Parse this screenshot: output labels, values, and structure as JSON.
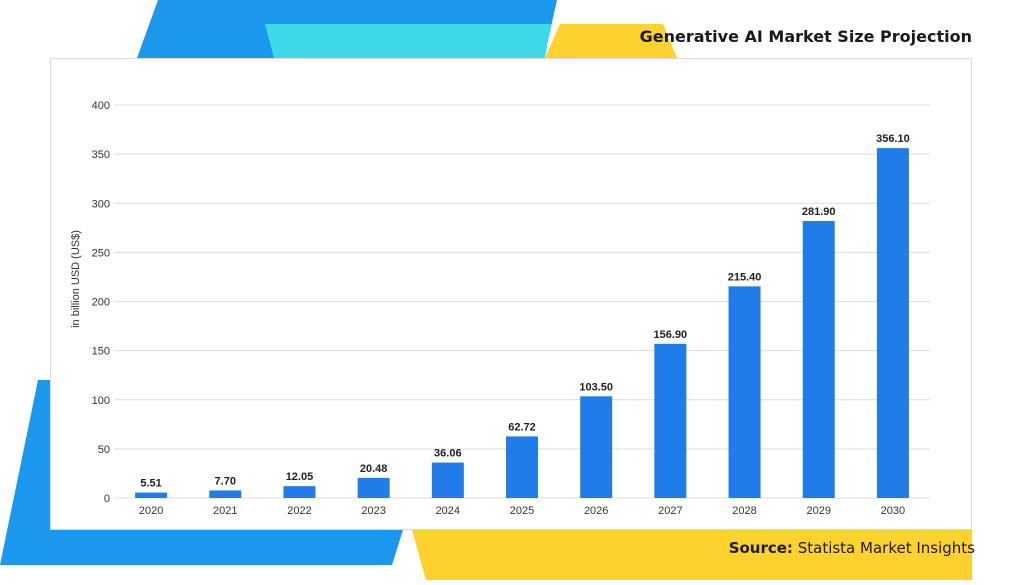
{
  "page": {
    "title": "Generative AI Market Size Projection",
    "source_label": "Source:",
    "source_text": "Statista Market Insights"
  },
  "colors": {
    "bar": "#1f7ce8",
    "accent_blue": "#1c97ee",
    "accent_cyan": "#3dd9e8",
    "accent_yellow": "#fdd12e",
    "grid": "#dcdcdc"
  },
  "chart_data": {
    "type": "bar",
    "title": "",
    "xlabel": "",
    "ylabel": "in billion USD (US$)",
    "categories": [
      "2020",
      "2021",
      "2022",
      "2023",
      "2024",
      "2025",
      "2026",
      "2027",
      "2028",
      "2029",
      "2030"
    ],
    "values": [
      5.51,
      7.7,
      12.05,
      20.48,
      36.06,
      62.72,
      103.5,
      156.9,
      215.4,
      281.9,
      356.1
    ],
    "value_labels": [
      "5.51",
      "7.70",
      "12.05",
      "20.48",
      "36.06",
      "62.72",
      "103.50",
      "156.90",
      "215.40",
      "281.90",
      "356.10"
    ],
    "ylim": [
      0,
      400
    ],
    "yticks": [
      0,
      50,
      100,
      150,
      200,
      250,
      300,
      350,
      400
    ],
    "grid": true,
    "legend": "none"
  }
}
